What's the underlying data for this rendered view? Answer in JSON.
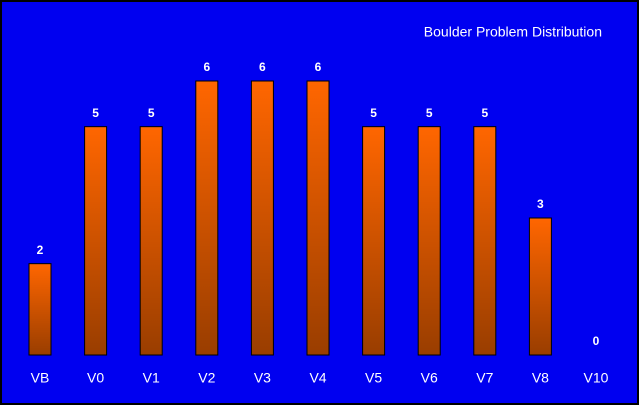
{
  "chart_data": {
    "type": "bar",
    "title": "Boulder Problem Distribution",
    "categories": [
      "VB",
      "V0",
      "V1",
      "V2",
      "V3",
      "V4",
      "V5",
      "V6",
      "V7",
      "V8",
      "V10"
    ],
    "values": [
      2,
      5,
      5,
      6,
      6,
      6,
      5,
      5,
      5,
      3,
      0
    ],
    "color": "#ff6600",
    "background": "#0000f0"
  }
}
